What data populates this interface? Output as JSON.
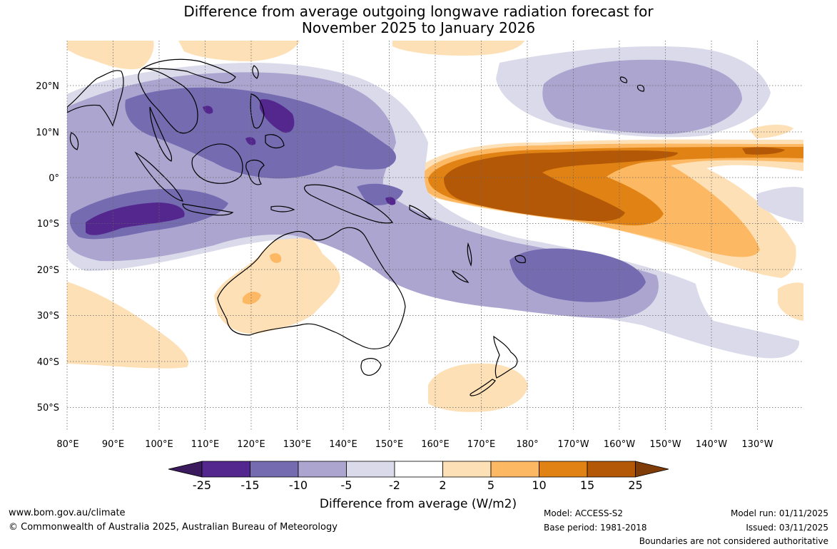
{
  "title": {
    "line1": "Difference from average outgoing longwave radiation forecast for",
    "line2": "November 2025 to January 2026"
  },
  "axes": {
    "lon_labels": [
      "80°E",
      "90°E",
      "100°E",
      "110°E",
      "120°E",
      "130°E",
      "140°E",
      "150°E",
      "160°E",
      "170°E",
      "180°",
      "170°W",
      "160°W",
      "150°W",
      "140°W",
      "130°W"
    ],
    "lat_labels": [
      "20°N",
      "10°N",
      "0°",
      "10°S",
      "20°S",
      "30°S",
      "40°S",
      "50°S"
    ],
    "lon_range_deg_east": [
      80,
      240
    ],
    "lat_range_deg": [
      -55,
      30
    ]
  },
  "colorbar": {
    "ticks": [
      "-25",
      "-15",
      "-10",
      "-5",
      "-2",
      "2",
      "5",
      "10",
      "15",
      "25"
    ],
    "colors": [
      "#3c1a5e",
      "#54278f",
      "#756bb1",
      "#aba5cf",
      "#dadaeb",
      "#ffffff",
      "#fee0b6",
      "#fdb863",
      "#e08214",
      "#b35806",
      "#7f3b08"
    ],
    "label": "Difference from average (W/m2)"
  },
  "chart_data": {
    "type": "heatmap",
    "variable": "Outgoing longwave radiation anomaly",
    "units": "W/m2",
    "period": "November 2025 to January 2026",
    "contour_levels": [
      -25,
      -15,
      -10,
      -5,
      -2,
      2,
      5,
      10,
      15,
      25
    ],
    "regions": [
      {
        "area": "Equatorial central Pacific (160°E–130°W)",
        "range": "+5 to +25"
      },
      {
        "area": "Maritime Continent / Philippines",
        "range": "-10 to -25"
      },
      {
        "area": "Eastern Indian Ocean off Sumatra/Java",
        "range": "-15 to -25"
      },
      {
        "area": "South Pacific Convergence Zone (near Fiji)",
        "range": "-5 to -15"
      },
      {
        "area": "Northwest Pacific near Hawaii",
        "range": "-5 to -15"
      },
      {
        "area": "Western & central Australia",
        "range": "+2 to +10"
      },
      {
        "area": "New Zealand",
        "range": "+2 to +5"
      }
    ]
  },
  "footer": {
    "website": "www.bom.gov.au/climate",
    "copyright": "© Commonwealth of Australia 2025, Australian Bureau of Meteorology",
    "model": "Model: ACCESS-S2",
    "base_period": "Base period: 1981-2018",
    "model_run": "Model run: 01/11/2025",
    "issued": "Issued: 03/11/2025",
    "boundaries": "Boundaries are not considered authoritative"
  }
}
